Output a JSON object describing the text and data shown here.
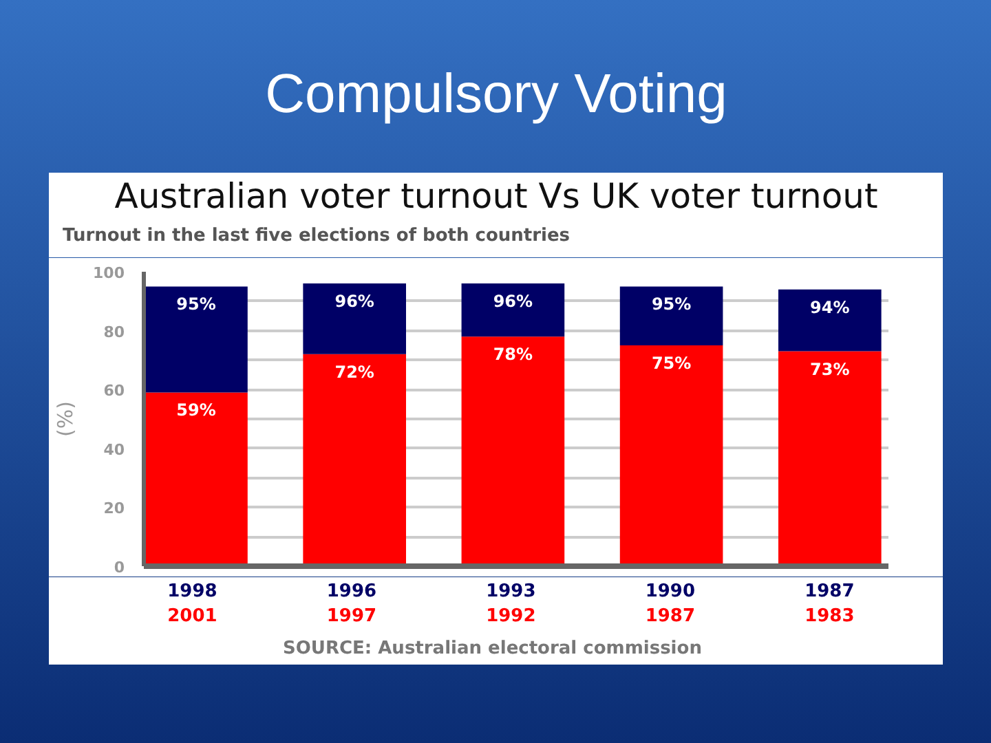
{
  "chart_data": {
    "type": "bar",
    "title": "Compulsory Voting",
    "subtitle": "Australian voter turnout Vs UK voter turnout",
    "ylabel": "(%)",
    "annotations": [
      "Turnout in the last five elections of both countries",
      "SOURCE: Australian electoral commission"
    ],
    "categories": [
      "1998\n2001",
      "1996\n1997",
      "1993\n1992",
      "1990\n1987",
      "1987\n1983"
    ],
    "stacked": true,
    "series": [
      {
        "color": "#ff0000",
        "values": [
          59,
          72,
          78,
          75,
          73
        ],
        "value_labels": [
          "59%",
          "72%",
          "78%",
          "75%",
          "73%"
        ]
      },
      {
        "color": "#000066",
        "values": [
          36,
          24,
          18,
          20,
          21
        ]
      }
    ],
    "totals": [
      "95%",
      "96%",
      "96%",
      "95%",
      "94%"
    ],
    "ylim": [
      0,
      100
    ],
    "yticks": [
      0,
      {
        "value": 10,
        "label": null
      },
      20,
      {
        "value": 30,
        "label": null
      },
      40,
      {
        "value": 50,
        "label": null
      },
      60,
      {
        "value": 70,
        "label": null
      },
      80,
      {
        "value": 90,
        "label": null
      },
      100
    ],
    "grid": "y"
  }
}
